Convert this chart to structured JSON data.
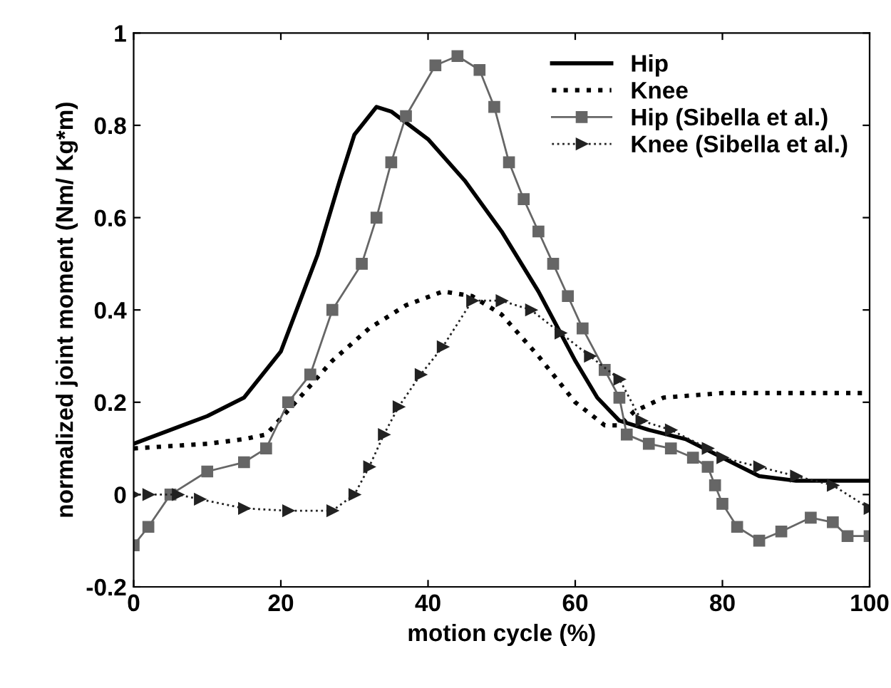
{
  "chart_data": {
    "type": "line",
    "xlabel": "motion cycle (%)",
    "ylabel": "normalized joint moment (Nm/ Kg*m)",
    "xlim": [
      0,
      100
    ],
    "ylim": [
      -0.2,
      1
    ],
    "xticks": [
      0,
      20,
      40,
      60,
      80,
      100
    ],
    "yticks": [
      -0.2,
      0,
      0.2,
      0.4,
      0.6,
      0.8,
      1
    ],
    "grid": false,
    "legend": "top right",
    "series": [
      {
        "name": "Hip",
        "color": "#000000",
        "line_style": "solid",
        "marker": "none",
        "x": [
          0,
          5,
          10,
          15,
          20,
          25,
          28,
          30,
          33,
          35,
          40,
          45,
          50,
          55,
          60,
          63,
          66,
          70,
          75,
          80,
          85,
          90,
          100
        ],
        "values": [
          0.11,
          0.14,
          0.17,
          0.21,
          0.31,
          0.52,
          0.68,
          0.78,
          0.84,
          0.83,
          0.77,
          0.68,
          0.57,
          0.44,
          0.29,
          0.21,
          0.16,
          0.14,
          0.12,
          0.08,
          0.04,
          0.03,
          0.03
        ]
      },
      {
        "name": "Knee",
        "color": "#000000",
        "line_style": "dotted",
        "marker": "none",
        "x": [
          0,
          10,
          15,
          18,
          22,
          27,
          32,
          37,
          42,
          46,
          50,
          55,
          60,
          64,
          66,
          68,
          72,
          80,
          90,
          100
        ],
        "values": [
          0.1,
          0.11,
          0.12,
          0.13,
          0.2,
          0.29,
          0.36,
          0.41,
          0.44,
          0.43,
          0.39,
          0.3,
          0.2,
          0.15,
          0.15,
          0.18,
          0.21,
          0.22,
          0.22,
          0.22
        ]
      },
      {
        "name": "Hip (Sibella et al.)",
        "color": "#666666",
        "line_style": "solid",
        "marker": "square",
        "x": [
          0,
          2,
          5,
          10,
          15,
          18,
          21,
          24,
          27,
          31,
          33,
          35,
          37,
          41,
          44,
          47,
          49,
          51,
          53,
          55,
          57,
          59,
          61,
          64,
          66,
          67,
          70,
          73,
          76,
          78,
          79,
          80,
          82,
          85,
          88,
          92,
          95,
          97,
          100
        ],
        "values": [
          -0.11,
          -0.07,
          0.0,
          0.05,
          0.07,
          0.1,
          0.2,
          0.26,
          0.4,
          0.5,
          0.6,
          0.72,
          0.82,
          0.93,
          0.95,
          0.92,
          0.84,
          0.72,
          0.64,
          0.57,
          0.5,
          0.43,
          0.36,
          0.27,
          0.21,
          0.13,
          0.11,
          0.1,
          0.08,
          0.06,
          0.02,
          -0.02,
          -0.07,
          -0.1,
          -0.08,
          -0.05,
          -0.06,
          -0.09,
          -0.09
        ]
      },
      {
        "name": "Knee (Sibella et al.)",
        "color": "#222222",
        "line_style": "dotted",
        "marker": "triangle",
        "x": [
          0,
          2,
          6,
          9,
          15,
          21,
          27,
          30,
          32,
          34,
          36,
          39,
          42,
          46,
          50,
          54,
          58,
          62,
          66,
          69,
          73,
          78,
          80,
          85,
          90,
          95,
          100
        ],
        "values": [
          0.0,
          0.0,
          0.0,
          -0.01,
          -0.03,
          -0.035,
          -0.035,
          0.0,
          0.06,
          0.13,
          0.19,
          0.26,
          0.32,
          0.42,
          0.42,
          0.4,
          0.35,
          0.3,
          0.25,
          0.16,
          0.14,
          0.1,
          0.08,
          0.06,
          0.04,
          0.02,
          -0.03
        ]
      }
    ]
  }
}
